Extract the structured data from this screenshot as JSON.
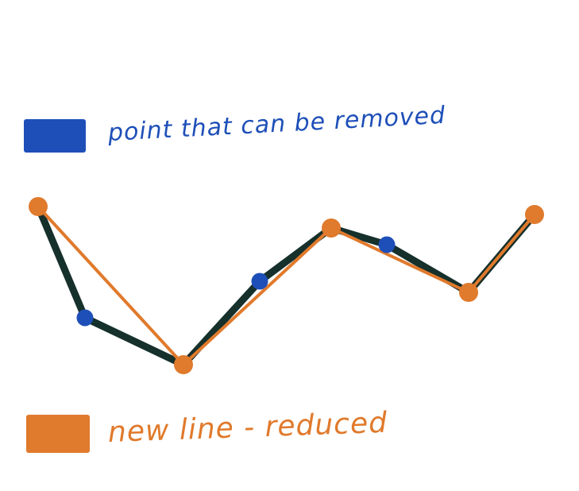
{
  "legend": {
    "removable": {
      "label": "point that can be removed",
      "color": "#1e4fb8"
    },
    "reduced": {
      "label": "new line - reduced",
      "color": "#e07a2c"
    }
  },
  "colors": {
    "original_line": "#16302b",
    "removable_point": "#1e4fb8",
    "kept_point": "#e07a2c",
    "reduced_line": "#e07a2c"
  },
  "diagram": {
    "original_points": [
      {
        "id": "p1",
        "kept": true
      },
      {
        "id": "p2",
        "kept": false
      },
      {
        "id": "p3",
        "kept": true
      },
      {
        "id": "p4",
        "kept": false
      },
      {
        "id": "p5",
        "kept": true
      },
      {
        "id": "p6",
        "kept": false
      },
      {
        "id": "p7",
        "kept": true
      },
      {
        "id": "p8",
        "kept": true
      }
    ]
  }
}
